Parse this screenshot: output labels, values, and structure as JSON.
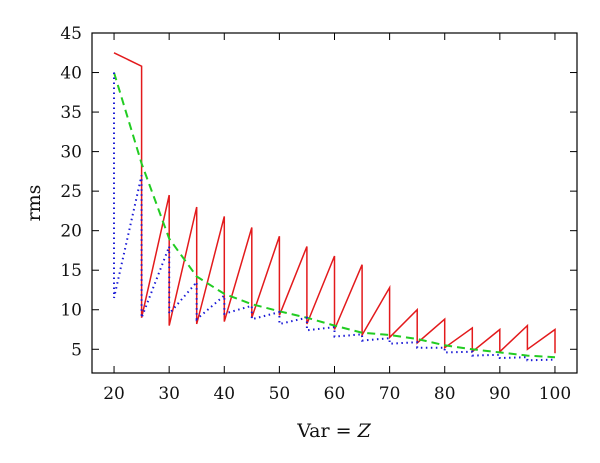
{
  "chart_data": {
    "type": "line",
    "title": "",
    "xlabel": "Var = ",
    "xlabel_italic": "Z",
    "ylabel": "rms",
    "xlim": [
      16,
      104
    ],
    "ylim": [
      2,
      45
    ],
    "xticks": [
      20,
      30,
      40,
      50,
      60,
      70,
      80,
      90,
      100
    ],
    "yticks": [
      5,
      10,
      15,
      20,
      25,
      30,
      35,
      40,
      45
    ],
    "grid": false,
    "legend": "none",
    "series": [
      {
        "color": "#e31a1c",
        "dash": "solid",
        "points": [
          [
            20,
            42.5
          ],
          [
            25,
            40.8
          ],
          [
            25,
            9.0
          ],
          [
            30,
            24.5
          ],
          [
            30,
            8.0
          ],
          [
            35,
            23.0
          ],
          [
            35,
            8.2
          ],
          [
            40,
            21.8
          ],
          [
            40,
            8.5
          ],
          [
            45,
            20.4
          ],
          [
            45,
            9.0
          ],
          [
            50,
            19.3
          ],
          [
            50,
            9.3
          ],
          [
            55,
            18.0
          ],
          [
            55,
            8.2
          ],
          [
            60,
            16.8
          ],
          [
            60,
            7.5
          ],
          [
            65,
            15.7
          ],
          [
            65,
            6.8
          ],
          [
            70,
            12.8
          ],
          [
            70,
            6.5
          ],
          [
            75,
            10.0
          ],
          [
            75,
            5.8
          ],
          [
            80,
            8.8
          ],
          [
            80,
            5.2
          ],
          [
            85,
            7.7
          ],
          [
            85,
            4.7
          ],
          [
            90,
            7.5
          ],
          [
            90,
            4.7
          ],
          [
            95,
            8.0
          ],
          [
            95,
            5.0
          ],
          [
            100,
            7.5
          ],
          [
            100,
            4.5
          ]
        ]
      },
      {
        "color": "#22cc22",
        "dash": "dashed",
        "points": [
          [
            20,
            40.0
          ],
          [
            25,
            28.5
          ],
          [
            30,
            19.0
          ],
          [
            35,
            14.2
          ],
          [
            40,
            12.0
          ],
          [
            45,
            10.7
          ],
          [
            50,
            9.8
          ],
          [
            55,
            9.0
          ],
          [
            60,
            8.0
          ],
          [
            65,
            7.1
          ],
          [
            70,
            6.8
          ],
          [
            75,
            6.3
          ],
          [
            80,
            5.5
          ],
          [
            85,
            5.0
          ],
          [
            90,
            4.6
          ],
          [
            95,
            4.2
          ],
          [
            100,
            4.0
          ]
        ]
      },
      {
        "color": "#1a1ad6",
        "dash": "dotted",
        "points": [
          [
            20,
            40.0
          ],
          [
            20,
            11.5
          ],
          [
            25,
            27.0
          ],
          [
            25,
            9.0
          ],
          [
            30,
            18.0
          ],
          [
            30,
            9.5
          ],
          [
            35,
            13.5
          ],
          [
            35,
            8.8
          ],
          [
            40,
            11.8
          ],
          [
            40,
            9.5
          ],
          [
            45,
            10.5
          ],
          [
            45,
            8.8
          ],
          [
            50,
            9.7
          ],
          [
            50,
            8.2
          ],
          [
            55,
            9.0
          ],
          [
            55,
            7.4
          ],
          [
            60,
            7.8
          ],
          [
            60,
            6.6
          ],
          [
            65,
            6.9
          ],
          [
            65,
            6.1
          ],
          [
            70,
            6.4
          ],
          [
            70,
            5.7
          ],
          [
            75,
            5.9
          ],
          [
            75,
            5.2
          ],
          [
            80,
            5.2
          ],
          [
            80,
            4.6
          ],
          [
            85,
            4.7
          ],
          [
            85,
            4.2
          ],
          [
            90,
            4.3
          ],
          [
            90,
            3.9
          ],
          [
            95,
            4.0
          ],
          [
            95,
            3.6
          ],
          [
            100,
            3.7
          ]
        ]
      }
    ]
  }
}
